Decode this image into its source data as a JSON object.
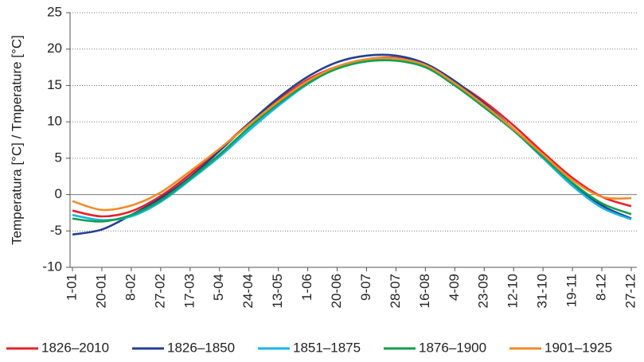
{
  "chart_data": {
    "type": "line",
    "ylabel": "Temperatura [°C] / Tmperature [°C]",
    "categories": [
      "1-01",
      "20-01",
      "8-02",
      "27-02",
      "17-03",
      "5-04",
      "24-04",
      "13-05",
      "1-06",
      "20-06",
      "9-07",
      "28-07",
      "16-08",
      "4-09",
      "23-09",
      "12-10",
      "31-10",
      "19-11",
      "8-12",
      "27-12"
    ],
    "ylim": [
      -10,
      25
    ],
    "yticks": [
      -10,
      -5,
      0,
      5,
      10,
      15,
      20,
      25
    ],
    "grid": true,
    "legend": "bottom",
    "series": [
      {
        "name": "1826–2010",
        "color": "#e8202a",
        "values": [
          -2.2,
          -3.0,
          -2.3,
          -0.2,
          2.8,
          6.2,
          9.8,
          13.0,
          15.8,
          17.6,
          18.6,
          18.8,
          17.8,
          15.5,
          12.8,
          9.5,
          5.8,
          2.3,
          -0.3,
          -1.6
        ]
      },
      {
        "name": "1826–1850",
        "color": "#253f8f",
        "values": [
          -5.5,
          -4.8,
          -2.8,
          -0.5,
          2.4,
          6.0,
          9.8,
          13.3,
          16.2,
          18.2,
          19.1,
          19.1,
          18.0,
          15.6,
          12.5,
          9.0,
          5.2,
          1.5,
          -1.5,
          -3.3
        ]
      },
      {
        "name": "1851–1875",
        "color": "#19b5ea",
        "values": [
          -2.8,
          -3.5,
          -3.0,
          -1.0,
          2.0,
          5.2,
          8.8,
          12.2,
          15.2,
          17.4,
          18.5,
          18.7,
          17.7,
          15.2,
          12.0,
          8.8,
          5.0,
          1.2,
          -1.8,
          -3.4
        ]
      },
      {
        "name": "1876–1900",
        "color": "#13a04a",
        "values": [
          -3.3,
          -3.7,
          -2.8,
          -0.8,
          2.2,
          5.5,
          9.2,
          12.5,
          15.3,
          17.3,
          18.3,
          18.4,
          17.5,
          15.0,
          12.0,
          8.8,
          5.2,
          1.6,
          -1.2,
          -2.7
        ]
      },
      {
        "name": "1901–1925",
        "color": "#f28c28",
        "values": [
          -0.9,
          -2.1,
          -1.5,
          0.3,
          3.2,
          6.3,
          9.6,
          12.8,
          15.6,
          17.6,
          18.6,
          18.7,
          17.8,
          15.3,
          12.3,
          9.0,
          5.5,
          2.0,
          -0.3,
          -0.5
        ]
      }
    ]
  }
}
